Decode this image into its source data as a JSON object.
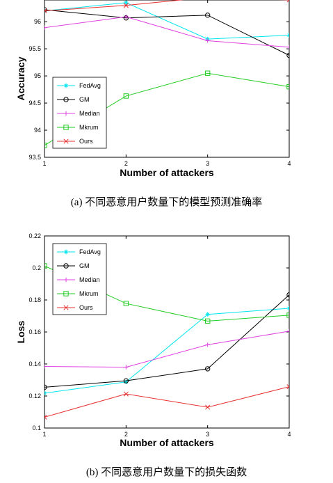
{
  "chart_data": [
    {
      "type": "line",
      "x": [
        1,
        2,
        3,
        4
      ],
      "xlabel": "Number of attackers",
      "ylabel": "Accuracy",
      "xlim": [
        1,
        4
      ],
      "ylim": [
        93.5,
        96.4
      ],
      "yticks": [
        93.5,
        94,
        94.5,
        95,
        95.5,
        96
      ],
      "ytick_labels": [
        "93.5",
        "94",
        "94.5",
        "95",
        "95.5",
        "96"
      ],
      "xticks": [
        1,
        2,
        3,
        4
      ],
      "legend_position": "bottom-left",
      "series": [
        {
          "name": "FedAvg",
          "values": [
            96.2,
            96.35,
            95.68,
            95.75
          ],
          "color": "#00e5ee",
          "marker": "asterisk"
        },
        {
          "name": "GM",
          "values": [
            96.22,
            96.07,
            96.12,
            95.38
          ],
          "color": "#000000",
          "marker": "circle"
        },
        {
          "name": "Median",
          "values": [
            95.89,
            96.09,
            95.65,
            95.53
          ],
          "color": "#e040e0",
          "marker": "plus"
        },
        {
          "name": "Mkrum",
          "values": [
            93.72,
            94.63,
            95.05,
            94.8
          ],
          "color": "#22cc22",
          "marker": "square"
        },
        {
          "name": "Ours",
          "values": [
            96.2,
            96.3,
            96.45,
            96.4
          ],
          "color": "#e83030",
          "marker": "x"
        }
      ],
      "caption": "(a) 不同恶意用户数量下的模型预测准确率"
    },
    {
      "type": "line",
      "x": [
        1,
        2,
        3,
        4
      ],
      "xlabel": "Number of attackers",
      "ylabel": "Loss",
      "xlim": [
        1,
        4
      ],
      "ylim": [
        0.1,
        0.22
      ],
      "yticks": [
        0.1,
        0.12,
        0.14,
        0.16,
        0.18,
        0.2,
        0.22
      ],
      "ytick_labels": [
        "0.1",
        "0.12",
        "0.14",
        "0.16",
        "0.18",
        "0.2",
        "0.22"
      ],
      "xticks": [
        1,
        2,
        3,
        4
      ],
      "legend_position": "top-left",
      "series": [
        {
          "name": "FedAvg",
          "values": [
            0.1218,
            0.1288,
            0.171,
            0.1748
          ],
          "color": "#00e5ee",
          "marker": "asterisk"
        },
        {
          "name": "GM",
          "values": [
            0.1255,
            0.1295,
            0.137,
            0.1832
          ],
          "color": "#000000",
          "marker": "circle"
        },
        {
          "name": "Median",
          "values": [
            0.1385,
            0.138,
            0.152,
            0.1605
          ],
          "color": "#e040e0",
          "marker": "plus"
        },
        {
          "name": "Mkrum",
          "values": [
            0.2013,
            0.1778,
            0.1668,
            0.1705
          ],
          "color": "#22cc22",
          "marker": "square"
        },
        {
          "name": "Ours",
          "values": [
            0.1068,
            0.1213,
            0.113,
            0.1258
          ],
          "color": "#e83030",
          "marker": "x"
        }
      ],
      "caption": "(b) 不同恶意用户数量下的损失函数"
    }
  ]
}
